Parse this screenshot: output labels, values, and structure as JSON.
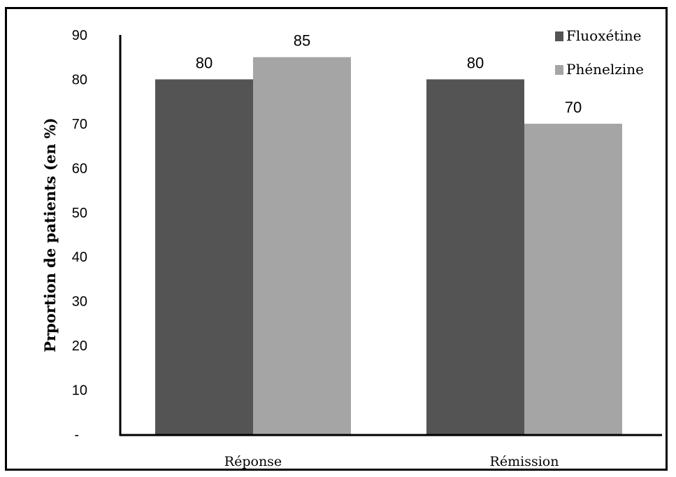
{
  "chart_data": {
    "type": "bar",
    "categories": [
      "Réponse",
      "Rémission"
    ],
    "series": [
      {
        "name": "Fluoxétine",
        "values": [
          80,
          80
        ],
        "color": "#545454"
      },
      {
        "name": "Phénelzine",
        "values": [
          85,
          70
        ],
        "color": "#a5a5a5"
      }
    ],
    "data_labels": [
      [
        "80",
        "85"
      ],
      [
        "80",
        "70"
      ]
    ],
    "title": "",
    "xlabel": "",
    "ylabel": "Prportion de patients (en %)",
    "ylim": [
      0,
      90
    ],
    "yticks": [
      0,
      10,
      20,
      30,
      40,
      50,
      60,
      70,
      80,
      90
    ],
    "ytick_labels": [
      "-",
      "10",
      "20",
      "30",
      "40",
      "50",
      "60",
      "70",
      "80",
      "90"
    ],
    "grid": false,
    "legend_position": "top-right"
  }
}
